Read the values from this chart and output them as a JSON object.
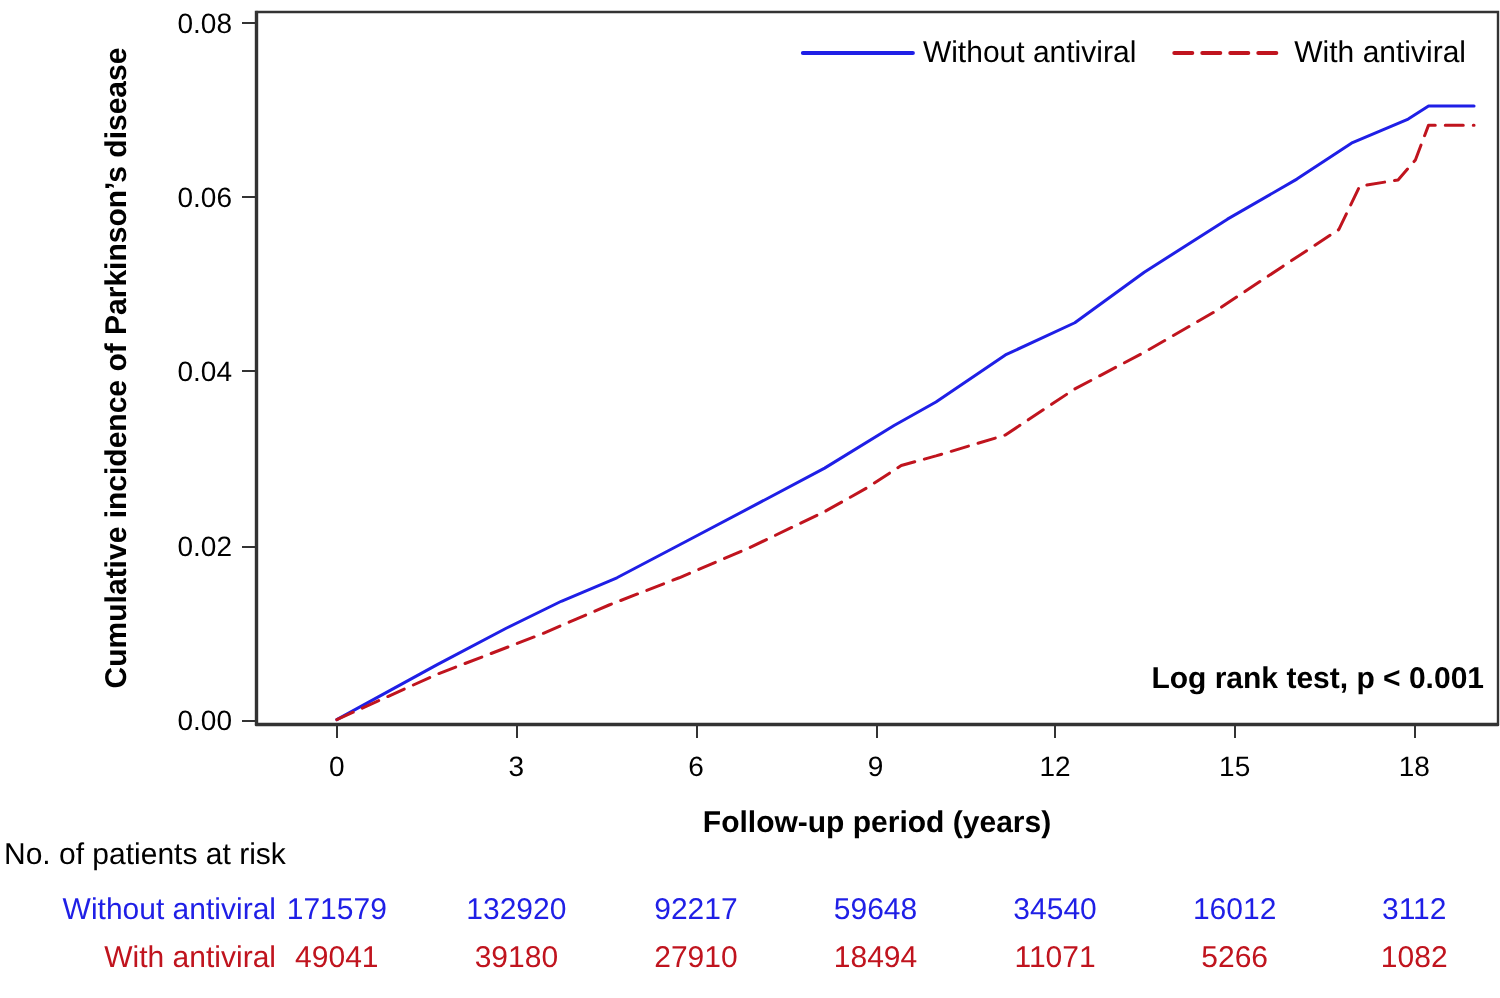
{
  "chart_data": {
    "type": "line",
    "xlabel": "Follow-up period (years)",
    "ylabel": "Cumulative incidence of Parkinson’s disease",
    "xlim": [
      -1.35,
      19.4
    ],
    "xticks": [
      0,
      3,
      6,
      9,
      12,
      15,
      18
    ],
    "ylim": [
      -0.0005,
      0.0813
    ],
    "yticks": [
      {
        "value": 0,
        "label": "0.00"
      },
      {
        "value": 0.02,
        "label": "0.02"
      },
      {
        "value": 0.04,
        "label": "0.04"
      },
      {
        "value": 0.06,
        "label": "0.06"
      },
      {
        "value": 0.08,
        "label": "0.08"
      }
    ],
    "legend": "top right",
    "marker": "none",
    "grid": false,
    "series": [
      {
        "name": "Without antiviral",
        "color": "#1f1fe6",
        "line_style": "solid",
        "x": [
          0,
          1.67,
          2.83,
          3.75,
          4.68,
          5.84,
          7.0,
          8.15,
          9.31,
          10.01,
          11.17,
          12.33,
          13.49,
          14.88,
          16.04,
          16.97,
          17.9,
          18.24,
          19.0
        ],
        "values": [
          0,
          0.0063,
          0.0105,
          0.0136,
          0.0163,
          0.0205,
          0.0247,
          0.0289,
          0.0338,
          0.0365,
          0.0419,
          0.0456,
          0.0514,
          0.0575,
          0.0621,
          0.0663,
          0.069,
          0.0705,
          0.0705
        ]
      },
      {
        "name": "With antiviral",
        "color": "#c0141e",
        "line_style": "dashed",
        "x": [
          0,
          1.67,
          3.41,
          4.56,
          5.72,
          6.88,
          8.15,
          8.85,
          9.43,
          10.01,
          11.17,
          12.33,
          13.49,
          14.65,
          15.81,
          16.74,
          17.09,
          17.73,
          18.02,
          18.24,
          19.0
        ],
        "values": [
          0,
          0.0052,
          0.0098,
          0.0132,
          0.0163,
          0.0197,
          0.0239,
          0.0266,
          0.0292,
          0.0303,
          0.0327,
          0.038,
          0.0422,
          0.0468,
          0.0521,
          0.0563,
          0.0613,
          0.062,
          0.0643,
          0.0683,
          0.0683
        ]
      }
    ],
    "annotations": [
      "Log rank test, p < 0.001",
      "No. of patients at risk",
      "171579",
      "132920",
      "92217",
      "59648",
      "34540",
      "16012",
      "3112",
      "49041",
      "39180",
      "27910",
      "18494",
      "11071",
      "5266",
      "1082"
    ]
  }
}
